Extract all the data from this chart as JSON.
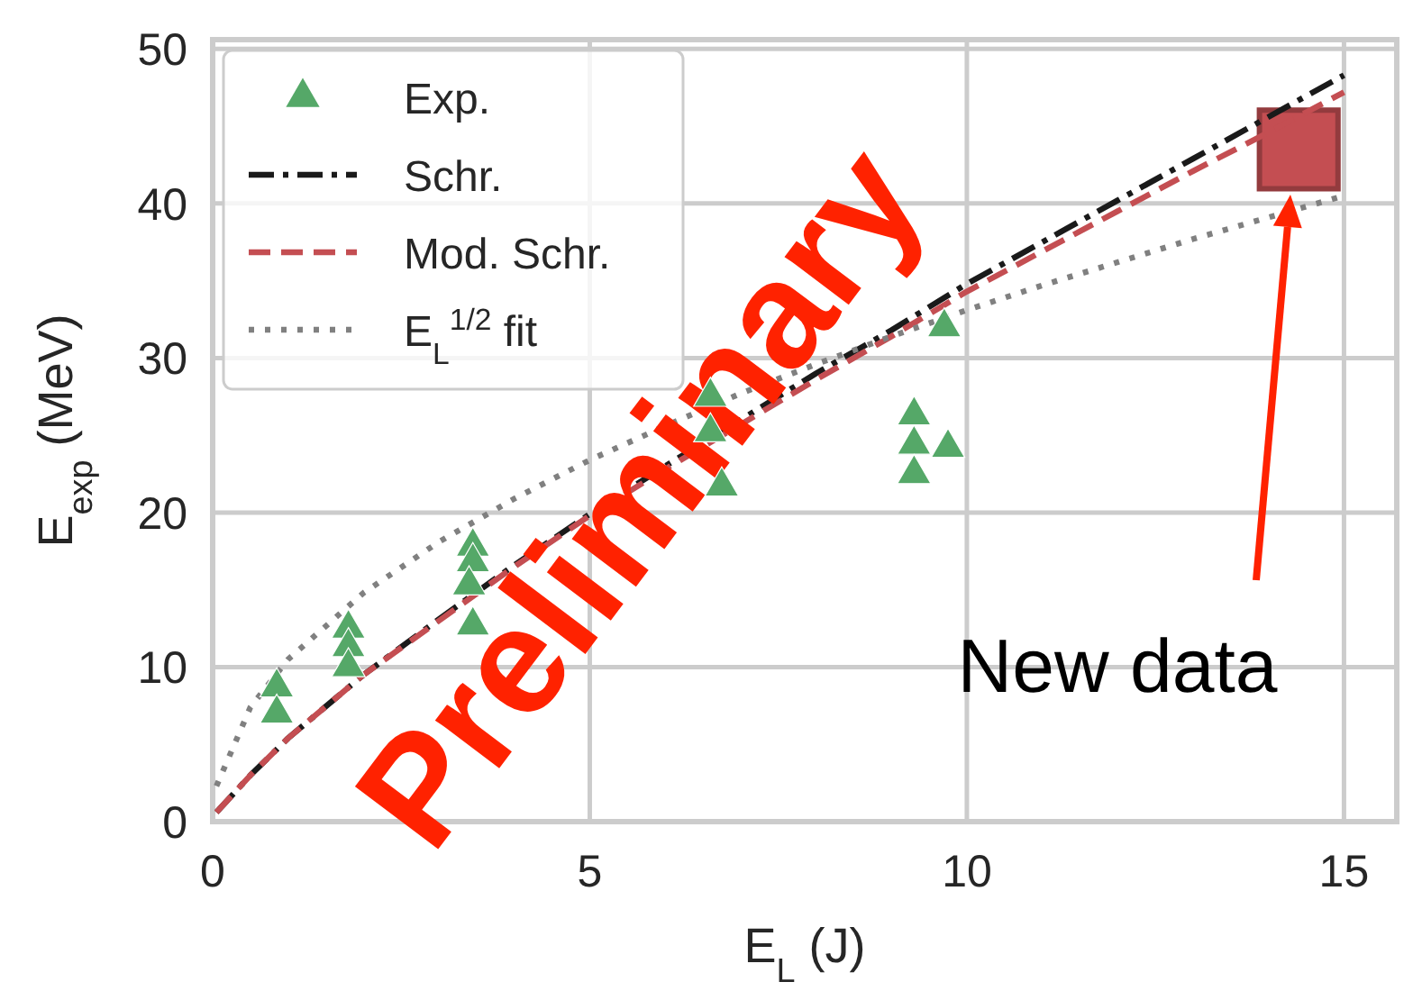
{
  "chart_data": {
    "type": "scatter",
    "xlabel": "E$_{L}$ (J)",
    "ylabel": "E$_{exp}$ (MeV)",
    "xlim": [
      0,
      15.7
    ],
    "ylim": [
      0,
      50.6
    ],
    "xticks": [
      0,
      5,
      10,
      15
    ],
    "yticks": [
      0,
      10,
      20,
      30,
      40,
      50
    ],
    "grid": true,
    "legend": "top left",
    "series": [
      {
        "name": "Exp.",
        "type": "scatter",
        "marker": "triangle",
        "color": "#55a868",
        "x": [
          0.85,
          0.85,
          1.8,
          1.8,
          1.8,
          3.45,
          3.45,
          3.4,
          3.45,
          6.6,
          6.6,
          6.75,
          9.3,
          9.3,
          9.3,
          9.7,
          9.75
        ],
        "values": [
          8.7,
          7.0,
          12.5,
          11.3,
          10.0,
          17.8,
          16.8,
          15.3,
          12.7,
          27.5,
          25.2,
          21.7,
          26.3,
          24.4,
          22.5,
          32.0,
          24.2
        ]
      },
      {
        "name": "Schr.",
        "type": "line",
        "line_style": "dashdot",
        "color": "#1a1a1a",
        "x": [
          0.05,
          0.5,
          1,
          2,
          3,
          4,
          5,
          6,
          7,
          8,
          9,
          10,
          11,
          12,
          13,
          14,
          15
        ],
        "values": [
          0.6,
          3.0,
          5.4,
          9.5,
          13.1,
          16.6,
          19.9,
          23.0,
          26.0,
          29.0,
          31.8,
          34.8,
          37.5,
          40.2,
          42.9,
          45.6,
          48.3
        ]
      },
      {
        "name": "Mod. Schr.",
        "type": "line",
        "line_style": "dashed",
        "color": "#c44e52",
        "x": [
          0.05,
          0.5,
          1,
          2,
          3,
          4,
          5,
          6,
          7,
          8,
          9,
          10,
          11,
          12,
          13,
          14,
          15
        ],
        "values": [
          0.6,
          3.0,
          5.4,
          9.5,
          13.0,
          16.5,
          19.8,
          22.8,
          25.7,
          28.6,
          31.4,
          34.3,
          36.9,
          39.5,
          42.1,
          44.6,
          47.2
        ]
      },
      {
        "name": "E$_{L}$$^{1/2}$ fit",
        "type": "line",
        "line_style": "dotted",
        "color": "#808080",
        "x": [
          0.05,
          0.5,
          1,
          2,
          3,
          4,
          5,
          6,
          7,
          8,
          9,
          10,
          11,
          12,
          13,
          14,
          15
        ],
        "values": [
          2.3,
          7.4,
          10.5,
          14.8,
          18.1,
          20.9,
          23.4,
          25.6,
          27.7,
          29.6,
          31.4,
          33.1,
          34.7,
          36.2,
          37.7,
          39.1,
          40.5
        ]
      },
      {
        "type": "scatter",
        "marker": "square",
        "color": "#c44e52",
        "x": [
          14.4
        ],
        "values": [
          43.5
        ]
      }
    ],
    "annotations": [
      "Preliminary",
      "New data"
    ]
  }
}
